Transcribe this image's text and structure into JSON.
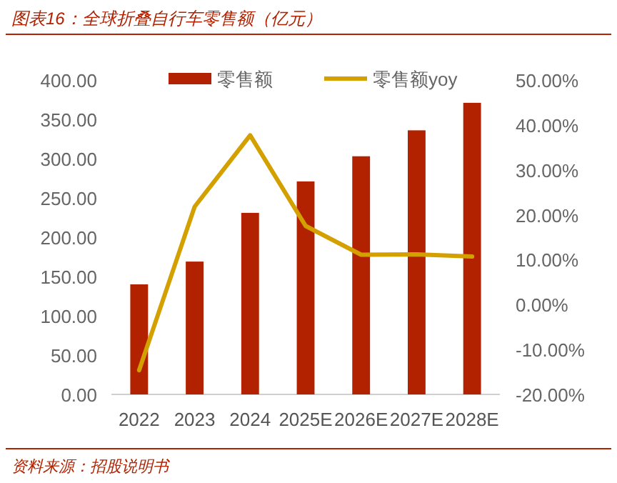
{
  "chart_data": {
    "type": "bar",
    "title": "图表16：全球折叠自行车零售额（亿元）",
    "categories": [
      "2022",
      "2023",
      "2024",
      "2025E",
      "2026E",
      "2027E",
      "2028E"
    ],
    "series": [
      {
        "name": "零售额",
        "color": "#b22200",
        "values": [
          140,
          169,
          231,
          271,
          303,
          336,
          371
        ]
      },
      {
        "name": "零售额yoy",
        "type": "line",
        "axis": "y2",
        "color": "#d4a000",
        "values": [
          -14.6,
          21.8,
          37.7,
          17.5,
          11.1,
          11.2,
          10.7
        ]
      }
    ],
    "ylim": [
      0,
      400
    ],
    "yticks": [
      {
        "value": 0,
        "label": "0.00"
      },
      {
        "value": 50,
        "label": "50.00"
      },
      {
        "value": 100,
        "label": "100.00"
      },
      {
        "value": 150,
        "label": "150.00"
      },
      {
        "value": 200,
        "label": "200.00"
      },
      {
        "value": 250,
        "label": "250.00"
      },
      {
        "value": 300,
        "label": "300.00"
      },
      {
        "value": 350,
        "label": "350.00"
      },
      {
        "value": 400,
        "label": "400.00"
      }
    ],
    "y2lim": [
      -20,
      50
    ],
    "y2ticks": [
      {
        "value": -20,
        "label": "-20.00%"
      },
      {
        "value": -10,
        "label": "-10.00%"
      },
      {
        "value": 0,
        "label": "0.00%"
      },
      {
        "value": 10,
        "label": "10.00%"
      },
      {
        "value": 20,
        "label": "20.00%"
      },
      {
        "value": 30,
        "label": "30.00%"
      },
      {
        "value": 40,
        "label": "40.00%"
      },
      {
        "value": 50,
        "label": "50.00%"
      }
    ],
    "legend": "top",
    "annotations": [
      "资料来源：招股说明书"
    ]
  }
}
